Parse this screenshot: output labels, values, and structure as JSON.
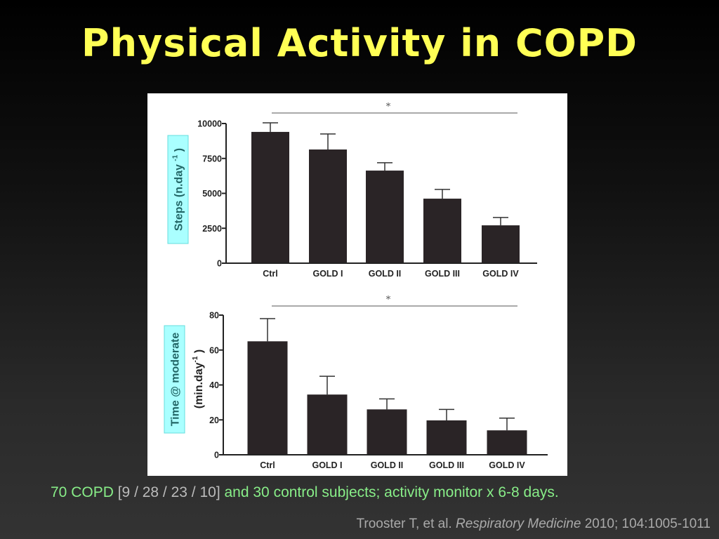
{
  "title": "Physical Activity in COPD",
  "footer": {
    "part1": "70 COPD",
    "part2": "[9 / 28 / 23 / 10]",
    "part3": "and 30 control subjects; activity monitor x 6-8 days."
  },
  "citation": {
    "authors": "Trooster T, et al.",
    "journal": "Respiratory Medicine",
    "details": "2010; 104:1005-1011"
  },
  "colors": {
    "title": "#ffff55",
    "footer_text": "#88ee88",
    "bar": "#2a2426",
    "label_box": "#aaffff"
  },
  "chart_data": [
    {
      "type": "bar",
      "categories": [
        "Ctrl",
        "GOLD I",
        "GOLD II",
        "GOLD III",
        "GOLD IV"
      ],
      "values": [
        9400,
        8140,
        6630,
        4620,
        2710
      ],
      "error_sd": [
        650,
        1110,
        560,
        660,
        560
      ],
      "ylabel": "Steps (n.day",
      "ylabel_sup": "-1",
      "ylabel_close": ")",
      "ylim": [
        0,
        10000
      ],
      "yticks": [
        "0",
        "2500",
        "5000",
        "7500",
        "10000"
      ],
      "significance": "*"
    },
    {
      "type": "bar",
      "categories": [
        "Ctrl",
        "GOLD I",
        "GOLD II",
        "GOLD III",
        "GOLD IV"
      ],
      "values": [
        65,
        34.5,
        26,
        19.7,
        14
      ],
      "error_sd": [
        13,
        10.5,
        6,
        6.3,
        7
      ],
      "ylabel": "Time @ moderate",
      "ylabel2": "(min.day",
      "ylabel_sup": "-1",
      "ylabel_close": ")",
      "ylim": [
        0,
        80
      ],
      "yticks": [
        "0",
        "20",
        "40",
        "60",
        "80"
      ],
      "significance": "*"
    }
  ]
}
